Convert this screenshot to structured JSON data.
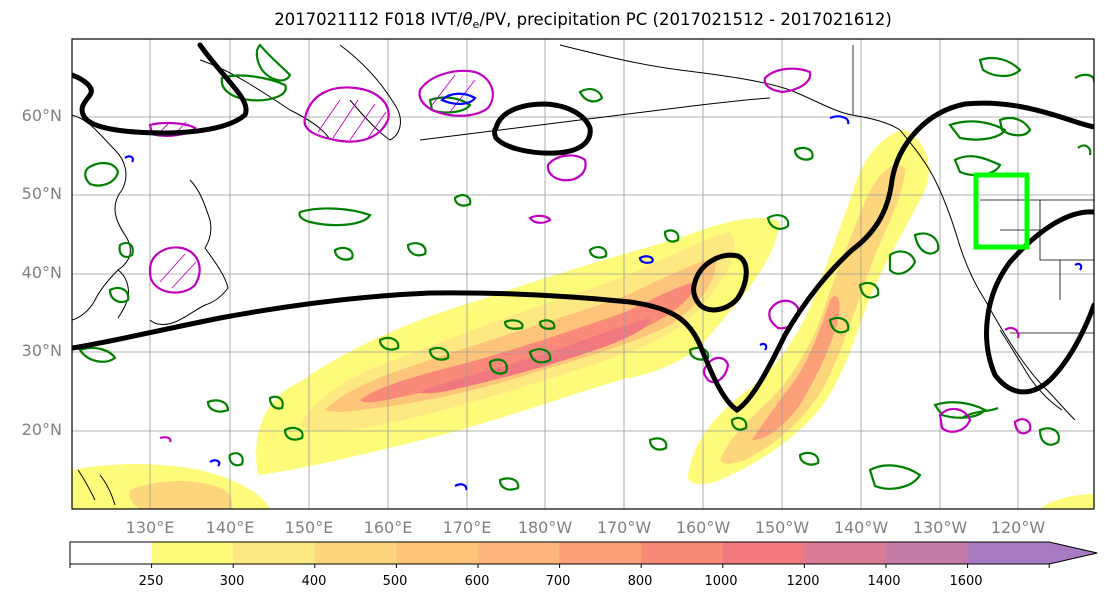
{
  "title": {
    "prefix": "2017021112 F018 IVT/",
    "symbol": "θ",
    "subscript": "e",
    "suffix": "/PV, precipitation PC (2017021512 - 2017021612)"
  },
  "map": {
    "latitude_labels": [
      "60°N",
      "50°N",
      "40°N",
      "30°N",
      "20°N"
    ],
    "longitude_labels": [
      "130°E",
      "140°E",
      "150°E",
      "160°E",
      "170°E",
      "180°W",
      "170°W",
      "160°W",
      "150°W",
      "140°W",
      "130°W",
      "120°W"
    ],
    "gridlines": true,
    "colors": {
      "theta_e_contour": "#000000",
      "pv_positive": "#bf00bf",
      "pv_negative": "#0000ff",
      "pv_green": "#008000",
      "region_box": "#00ff00"
    }
  },
  "colorbar": {
    "levels": [
      "250",
      "300",
      "400",
      "500",
      "600",
      "700",
      "800",
      "1000",
      "1200",
      "1400",
      "1600"
    ],
    "colors": [
      "#ffffff",
      "#fffb7a",
      "#fee882",
      "#fdd57c",
      "#fdc47a",
      "#fdb57b",
      "#fca07a",
      "#f98a7a",
      "#f0787e",
      "#db7a95",
      "#c27aa7",
      "#a77ac1"
    ],
    "extend": "max"
  }
}
